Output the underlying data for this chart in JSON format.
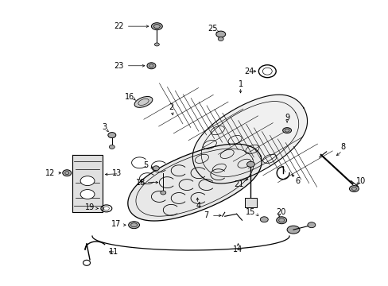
{
  "background_color": "#ffffff",
  "fig_width": 4.89,
  "fig_height": 3.6,
  "dpi": 100,
  "line_color": "#000000",
  "text_color": "#000000",
  "font_size": 7.0
}
